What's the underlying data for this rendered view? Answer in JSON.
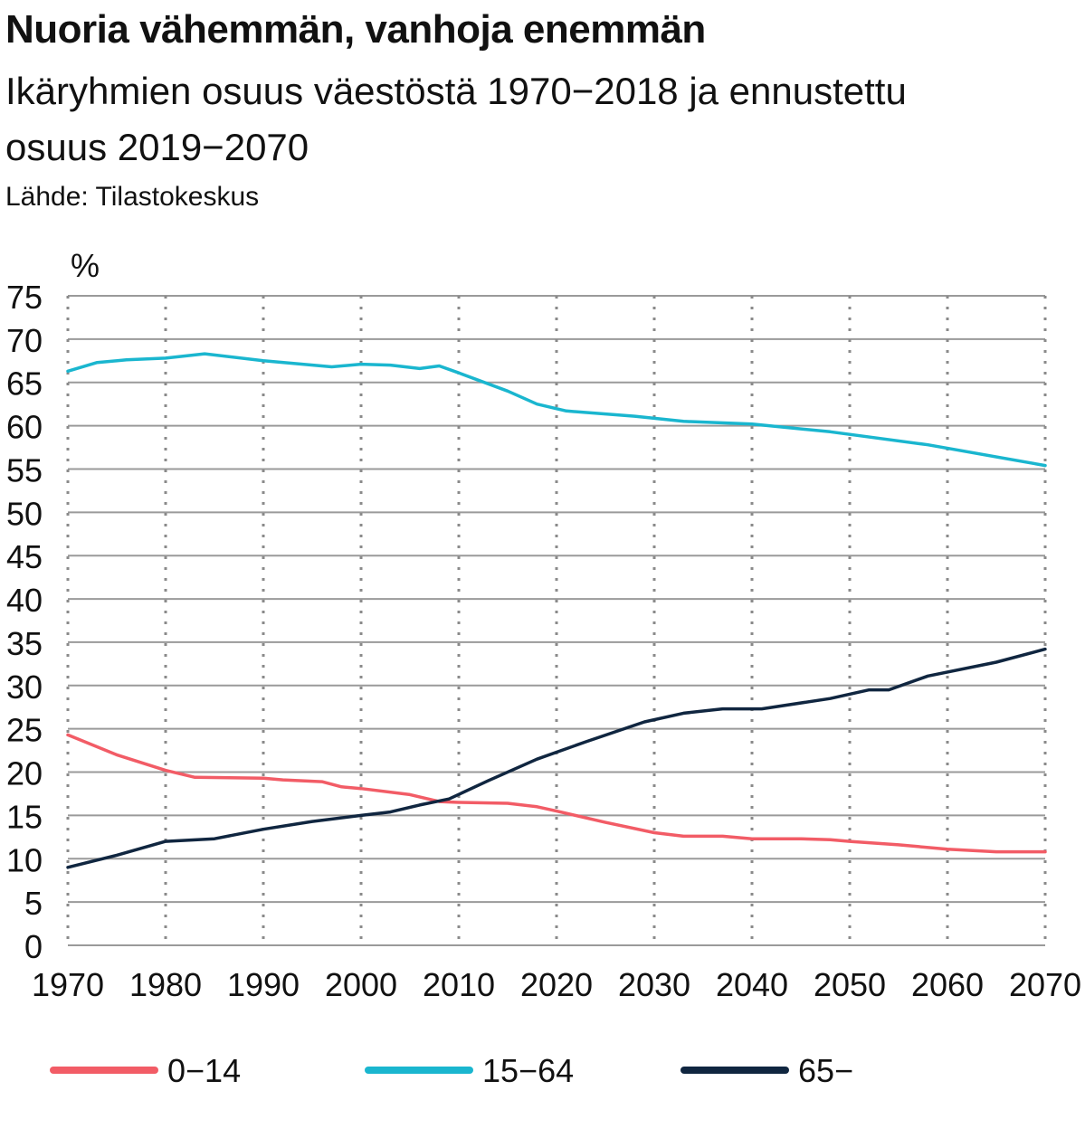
{
  "header": {
    "title": "Nuoria vähemmän, vanhoja enemmän",
    "subtitle": "Ikäryhmien osuus väestöstä 1970−2018 ja ennustettu osuus 2019−2070",
    "source": "Lähde: Tilastokeskus"
  },
  "chart_data": {
    "type": "line",
    "ylabel": "%",
    "xlim": [
      1970,
      2070
    ],
    "ylim": [
      0,
      75
    ],
    "x_ticks": [
      1970,
      1980,
      1990,
      2000,
      2010,
      2020,
      2030,
      2040,
      2050,
      2060,
      2070
    ],
    "y_ticks": [
      0,
      5,
      10,
      15,
      20,
      25,
      30,
      35,
      40,
      45,
      50,
      55,
      60,
      65,
      70,
      75
    ],
    "grid": {
      "horizontal": "solid",
      "vertical": "dotted"
    },
    "legend_position": "bottom",
    "series": [
      {
        "name": "0−14",
        "color": "#f25c66",
        "points": [
          [
            1970,
            24.3
          ],
          [
            1975,
            22.0
          ],
          [
            1980,
            20.2
          ],
          [
            1983,
            19.4
          ],
          [
            1990,
            19.3
          ],
          [
            1992,
            19.1
          ],
          [
            1996,
            18.9
          ],
          [
            1998,
            18.3
          ],
          [
            2000,
            18.1
          ],
          [
            2005,
            17.4
          ],
          [
            2008,
            16.6
          ],
          [
            2010,
            16.5
          ],
          [
            2015,
            16.4
          ],
          [
            2018,
            16.0
          ],
          [
            2020,
            15.5
          ],
          [
            2025,
            14.2
          ],
          [
            2030,
            13.0
          ],
          [
            2033,
            12.6
          ],
          [
            2037,
            12.6
          ],
          [
            2040,
            12.3
          ],
          [
            2045,
            12.3
          ],
          [
            2048,
            12.2
          ],
          [
            2050,
            12.0
          ],
          [
            2055,
            11.6
          ],
          [
            2060,
            11.1
          ],
          [
            2065,
            10.8
          ],
          [
            2070,
            10.8
          ]
        ]
      },
      {
        "name": "15−64",
        "color": "#1ab6cf",
        "points": [
          [
            1970,
            66.3
          ],
          [
            1973,
            67.3
          ],
          [
            1976,
            67.6
          ],
          [
            1980,
            67.8
          ],
          [
            1984,
            68.3
          ],
          [
            1990,
            67.5
          ],
          [
            1997,
            66.8
          ],
          [
            2000,
            67.1
          ],
          [
            2003,
            67.0
          ],
          [
            2006,
            66.6
          ],
          [
            2008,
            66.9
          ],
          [
            2010,
            66.1
          ],
          [
            2015,
            64.0
          ],
          [
            2018,
            62.5
          ],
          [
            2021,
            61.7
          ],
          [
            2028,
            61.1
          ],
          [
            2033,
            60.5
          ],
          [
            2040,
            60.2
          ],
          [
            2048,
            59.3
          ],
          [
            2058,
            57.8
          ],
          [
            2070,
            55.4
          ]
        ]
      },
      {
        "name": "65−",
        "color": "#102640",
        "points": [
          [
            1970,
            9.0
          ],
          [
            1975,
            10.4
          ],
          [
            1980,
            12.0
          ],
          [
            1985,
            12.3
          ],
          [
            1990,
            13.4
          ],
          [
            1995,
            14.3
          ],
          [
            2000,
            15.0
          ],
          [
            2003,
            15.4
          ],
          [
            2006,
            16.2
          ],
          [
            2009,
            16.9
          ],
          [
            2013,
            19.0
          ],
          [
            2018,
            21.5
          ],
          [
            2023,
            23.5
          ],
          [
            2029,
            25.8
          ],
          [
            2033,
            26.8
          ],
          [
            2037,
            27.3
          ],
          [
            2041,
            27.3
          ],
          [
            2048,
            28.5
          ],
          [
            2052,
            29.5
          ],
          [
            2054,
            29.5
          ],
          [
            2058,
            31.1
          ],
          [
            2065,
            32.7
          ],
          [
            2070,
            34.2
          ]
        ]
      }
    ]
  }
}
